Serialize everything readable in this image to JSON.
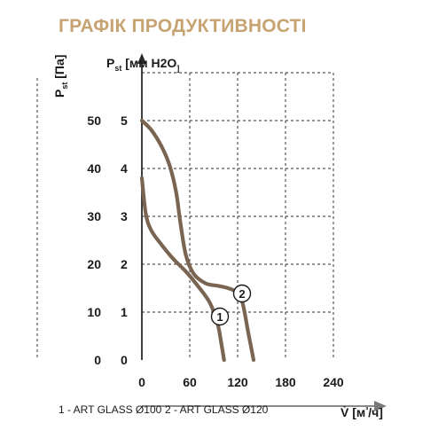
{
  "title": "ГРАФІК ПРОДУКТИВНОСТІ",
  "colors": {
    "title": "#c7a372",
    "curve": "#7a6552",
    "grid": "#555555",
    "axis": "#2a2a2a"
  },
  "chart_data": {
    "type": "line",
    "title": "ГРАФІК ПРОДУКТИВНОСТІ",
    "xlabel": "V̇ [м³/ч]",
    "ylabel_left": "Pst [Па]",
    "ylabel_right": "Pst [мм H2O]",
    "xlim": [
      0,
      240
    ],
    "ylim_pa": [
      0,
      50
    ],
    "ylim_mm": [
      0,
      5
    ],
    "x_ticks": [
      0,
      60,
      120,
      180,
      240
    ],
    "y_ticks_pa": [
      0,
      10,
      20,
      30,
      40,
      50
    ],
    "y_ticks_mm": [
      0,
      1,
      2,
      3,
      4,
      5
    ],
    "grid": true,
    "series": [
      {
        "name": "1",
        "x": [
          0,
          5,
          12,
          25,
          40,
          55,
          70,
          85,
          95,
          100,
          103
        ],
        "y": [
          3.8,
          3.05,
          2.7,
          2.4,
          2.1,
          1.85,
          1.55,
          1.2,
          0.75,
          0.3,
          0
        ]
      },
      {
        "name": "2",
        "x": [
          0,
          12,
          25,
          35,
          43,
          48,
          55,
          65,
          80,
          95,
          108,
          118,
          126,
          133,
          140
        ],
        "y": [
          5.0,
          4.8,
          4.45,
          4.05,
          3.5,
          2.9,
          2.2,
          1.8,
          1.6,
          1.55,
          1.5,
          1.42,
          1.2,
          0.6,
          0
        ]
      }
    ],
    "legend": [
      "1 - ART GLASS Ø100",
      "2 - ART GLASS Ø120"
    ],
    "legend_position": "bottom"
  }
}
